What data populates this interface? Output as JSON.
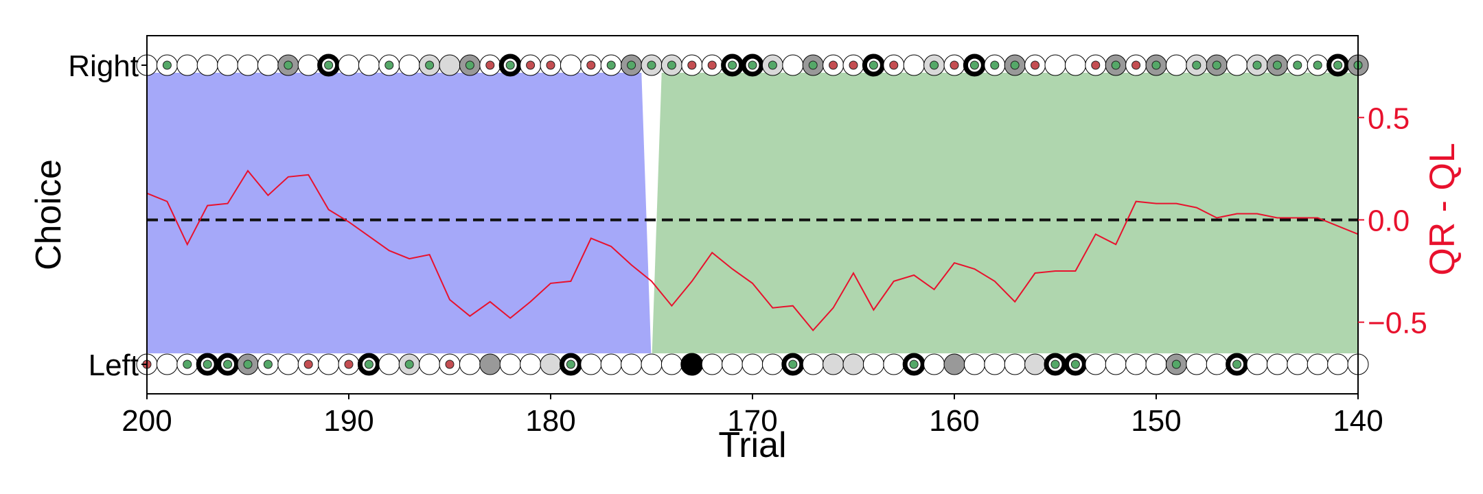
{
  "chart_data": {
    "type": "line",
    "xlabel": "Trial",
    "ylabel_left": "Choice",
    "ylabel_right": "QR - QL",
    "xlim": [
      200,
      140
    ],
    "x_ticks": [
      200,
      190,
      180,
      170,
      160,
      150,
      140
    ],
    "choice_ticks": [
      "Left",
      "Right"
    ],
    "right_ylim": [
      -0.85,
      0.9
    ],
    "right_ticks": [
      0.5,
      0.0,
      -0.5
    ],
    "colors": {
      "block_a": "#a5a8f9",
      "block_b": "#a6d2a5",
      "line": "#e8112d",
      "threshold": "#111111",
      "reward_dot": "#55a868",
      "no_reward_dot": "#c44e52",
      "right_axis": "#e8112d"
    },
    "blocks": [
      {
        "color": "block_a",
        "x_start": 200,
        "x_end": 175.5
      },
      {
        "color": "block_b",
        "x_start": 174.5,
        "x_end": 140
      }
    ],
    "threshold": 0.0,
    "series": [
      {
        "x": [
          200,
          199,
          198,
          197,
          196,
          195,
          194,
          193,
          192,
          191,
          190,
          189,
          188,
          187,
          186,
          185,
          184,
          183,
          182,
          181,
          180,
          179,
          178,
          177,
          176,
          175,
          174,
          173,
          172,
          171,
          170,
          169,
          168,
          167,
          166,
          165,
          164,
          163,
          162,
          161,
          160,
          159,
          158,
          157,
          156,
          155,
          154,
          153,
          152,
          151,
          150,
          149,
          148,
          147,
          146,
          145,
          144,
          143,
          142,
          141,
          140
        ],
        "values": [
          0.13,
          0.09,
          -0.12,
          0.07,
          0.08,
          0.24,
          0.12,
          0.21,
          0.22,
          0.05,
          -0.01,
          -0.08,
          -0.15,
          -0.19,
          -0.17,
          -0.39,
          -0.47,
          -0.4,
          -0.48,
          -0.4,
          -0.31,
          -0.3,
          -0.09,
          -0.13,
          -0.22,
          -0.3,
          -0.42,
          -0.3,
          -0.16,
          -0.24,
          -0.31,
          -0.43,
          -0.42,
          -0.54,
          -0.43,
          -0.26,
          -0.44,
          -0.3,
          -0.27,
          -0.34,
          -0.21,
          -0.24,
          -0.3,
          -0.4,
          -0.26,
          -0.25,
          -0.25,
          -0.07,
          -0.12,
          0.09,
          0.08,
          0.08,
          0.06,
          0.01,
          0.03,
          0.03,
          0.01,
          0.01,
          0.01,
          -0.03,
          -0.07
        ]
      }
    ],
    "right_choices": [
      {
        "x": 200,
        "fill": "#ffffff",
        "ring": "thin",
        "dot": "none"
      },
      {
        "x": 199,
        "fill": "#ffffff",
        "ring": "thin",
        "dot": "green"
      },
      {
        "x": 198,
        "fill": "#ffffff",
        "ring": "thin",
        "dot": "none"
      },
      {
        "x": 197,
        "fill": "#ffffff",
        "ring": "thin",
        "dot": "none"
      },
      {
        "x": 196,
        "fill": "#ffffff",
        "ring": "thin",
        "dot": "none"
      },
      {
        "x": 195,
        "fill": "#ffffff",
        "ring": "thin",
        "dot": "none"
      },
      {
        "x": 194,
        "fill": "#ffffff",
        "ring": "thin",
        "dot": "none"
      },
      {
        "x": 193,
        "fill": "#999999",
        "ring": "thin",
        "dot": "green"
      },
      {
        "x": 192,
        "fill": "#ffffff",
        "ring": "thin",
        "dot": "none"
      },
      {
        "x": 191,
        "fill": "#ffffff",
        "ring": "thick",
        "dot": "green"
      },
      {
        "x": 190,
        "fill": "#ffffff",
        "ring": "thin",
        "dot": "none"
      },
      {
        "x": 189,
        "fill": "#ffffff",
        "ring": "thin",
        "dot": "none"
      },
      {
        "x": 188,
        "fill": "#ffffff",
        "ring": "thin",
        "dot": "green"
      },
      {
        "x": 187,
        "fill": "#ffffff",
        "ring": "thin",
        "dot": "none"
      },
      {
        "x": 186,
        "fill": "#d9d9d9",
        "ring": "thin",
        "dot": "green"
      },
      {
        "x": 185,
        "fill": "#d9d9d9",
        "ring": "thin",
        "dot": "none"
      },
      {
        "x": 184,
        "fill": "#999999",
        "ring": "thin",
        "dot": "green"
      },
      {
        "x": 183,
        "fill": "#ffffff",
        "ring": "thin",
        "dot": "red"
      },
      {
        "x": 182,
        "fill": "#ffffff",
        "ring": "thick",
        "dot": "green"
      },
      {
        "x": 181,
        "fill": "#ffffff",
        "ring": "thin",
        "dot": "red"
      },
      {
        "x": 180,
        "fill": "#ffffff",
        "ring": "thin",
        "dot": "red"
      },
      {
        "x": 179,
        "fill": "#ffffff",
        "ring": "thin",
        "dot": "none"
      },
      {
        "x": 178,
        "fill": "#ffffff",
        "ring": "thin",
        "dot": "red"
      },
      {
        "x": 177,
        "fill": "#ffffff",
        "ring": "thin",
        "dot": "green"
      },
      {
        "x": 176,
        "fill": "#999999",
        "ring": "thin",
        "dot": "green"
      },
      {
        "x": 175,
        "fill": "#d9d9d9",
        "ring": "thin",
        "dot": "green"
      },
      {
        "x": 174,
        "fill": "#d9d9d9",
        "ring": "thin",
        "dot": "green"
      },
      {
        "x": 173,
        "fill": "#ffffff",
        "ring": "thin",
        "dot": "red"
      },
      {
        "x": 172,
        "fill": "#ffffff",
        "ring": "thin",
        "dot": "red"
      },
      {
        "x": 171,
        "fill": "#ffffff",
        "ring": "thick",
        "dot": "green"
      },
      {
        "x": 170,
        "fill": "#ffffff",
        "ring": "thick",
        "dot": "green"
      },
      {
        "x": 169,
        "fill": "#d9d9d9",
        "ring": "thin",
        "dot": "green"
      },
      {
        "x": 168,
        "fill": "#ffffff",
        "ring": "thin",
        "dot": "none"
      },
      {
        "x": 167,
        "fill": "#999999",
        "ring": "thin",
        "dot": "green"
      },
      {
        "x": 166,
        "fill": "#ffffff",
        "ring": "thin",
        "dot": "red"
      },
      {
        "x": 165,
        "fill": "#ffffff",
        "ring": "thin",
        "dot": "red"
      },
      {
        "x": 164,
        "fill": "#ffffff",
        "ring": "thick",
        "dot": "green"
      },
      {
        "x": 163,
        "fill": "#ffffff",
        "ring": "thin",
        "dot": "red"
      },
      {
        "x": 162,
        "fill": "#ffffff",
        "ring": "thin",
        "dot": "none"
      },
      {
        "x": 161,
        "fill": "#d9d9d9",
        "ring": "thin",
        "dot": "green"
      },
      {
        "x": 160,
        "fill": "#ffffff",
        "ring": "thin",
        "dot": "red"
      },
      {
        "x": 159,
        "fill": "#ffffff",
        "ring": "thick",
        "dot": "green"
      },
      {
        "x": 158,
        "fill": "#ffffff",
        "ring": "thin",
        "dot": "green"
      },
      {
        "x": 157,
        "fill": "#999999",
        "ring": "thin",
        "dot": "green"
      },
      {
        "x": 156,
        "fill": "#ffffff",
        "ring": "thin",
        "dot": "red"
      },
      {
        "x": 155,
        "fill": "#ffffff",
        "ring": "thin",
        "dot": "none"
      },
      {
        "x": 154,
        "fill": "#ffffff",
        "ring": "thin",
        "dot": "none"
      },
      {
        "x": 153,
        "fill": "#ffffff",
        "ring": "thin",
        "dot": "red"
      },
      {
        "x": 152,
        "fill": "#999999",
        "ring": "thin",
        "dot": "green"
      },
      {
        "x": 151,
        "fill": "#ffffff",
        "ring": "thin",
        "dot": "red"
      },
      {
        "x": 150,
        "fill": "#999999",
        "ring": "thin",
        "dot": "green"
      },
      {
        "x": 149,
        "fill": "#ffffff",
        "ring": "thin",
        "dot": "none"
      },
      {
        "x": 148,
        "fill": "#d9d9d9",
        "ring": "thin",
        "dot": "green"
      },
      {
        "x": 147,
        "fill": "#999999",
        "ring": "thin",
        "dot": "green"
      },
      {
        "x": 146,
        "fill": "#ffffff",
        "ring": "thin",
        "dot": "none"
      },
      {
        "x": 145,
        "fill": "#d9d9d9",
        "ring": "thin",
        "dot": "green"
      },
      {
        "x": 144,
        "fill": "#999999",
        "ring": "thin",
        "dot": "green"
      },
      {
        "x": 143,
        "fill": "#ffffff",
        "ring": "thin",
        "dot": "green"
      },
      {
        "x": 142,
        "fill": "#ffffff",
        "ring": "thin",
        "dot": "green"
      },
      {
        "x": 141,
        "fill": "#ffffff",
        "ring": "thick",
        "dot": "green"
      },
      {
        "x": 140,
        "fill": "#999999",
        "ring": "thin",
        "dot": "green"
      }
    ],
    "left_choices": [
      {
        "x": 200,
        "fill": "#ffffff",
        "ring": "thin",
        "dot": "red"
      },
      {
        "x": 199,
        "fill": "#ffffff",
        "ring": "thin",
        "dot": "none"
      },
      {
        "x": 198,
        "fill": "#ffffff",
        "ring": "thin",
        "dot": "green"
      },
      {
        "x": 197,
        "fill": "#ffffff",
        "ring": "thick",
        "dot": "green"
      },
      {
        "x": 196,
        "fill": "#ffffff",
        "ring": "thick",
        "dot": "green"
      },
      {
        "x": 195,
        "fill": "#999999",
        "ring": "thin",
        "dot": "green"
      },
      {
        "x": 194,
        "fill": "#ffffff",
        "ring": "thin",
        "dot": "green"
      },
      {
        "x": 193,
        "fill": "#ffffff",
        "ring": "thin",
        "dot": "none"
      },
      {
        "x": 192,
        "fill": "#ffffff",
        "ring": "thin",
        "dot": "red"
      },
      {
        "x": 191,
        "fill": "#ffffff",
        "ring": "thin",
        "dot": "none"
      },
      {
        "x": 190,
        "fill": "#ffffff",
        "ring": "thin",
        "dot": "red"
      },
      {
        "x": 189,
        "fill": "#ffffff",
        "ring": "thick",
        "dot": "green"
      },
      {
        "x": 188,
        "fill": "#ffffff",
        "ring": "thin",
        "dot": "none"
      },
      {
        "x": 187,
        "fill": "#d9d9d9",
        "ring": "thin",
        "dot": "green"
      },
      {
        "x": 186,
        "fill": "#ffffff",
        "ring": "thin",
        "dot": "none"
      },
      {
        "x": 185,
        "fill": "#ffffff",
        "ring": "thin",
        "dot": "red"
      },
      {
        "x": 184,
        "fill": "#ffffff",
        "ring": "thin",
        "dot": "none"
      },
      {
        "x": 183,
        "fill": "#999999",
        "ring": "thin",
        "dot": "none"
      },
      {
        "x": 182,
        "fill": "#ffffff",
        "ring": "thin",
        "dot": "none"
      },
      {
        "x": 181,
        "fill": "#ffffff",
        "ring": "thin",
        "dot": "none"
      },
      {
        "x": 180,
        "fill": "#d9d9d9",
        "ring": "thin",
        "dot": "none"
      },
      {
        "x": 179,
        "fill": "#ffffff",
        "ring": "thick",
        "dot": "green"
      },
      {
        "x": 178,
        "fill": "#ffffff",
        "ring": "thin",
        "dot": "none"
      },
      {
        "x": 177,
        "fill": "#ffffff",
        "ring": "thin",
        "dot": "none"
      },
      {
        "x": 176,
        "fill": "#ffffff",
        "ring": "thin",
        "dot": "none"
      },
      {
        "x": 175,
        "fill": "#ffffff",
        "ring": "thin",
        "dot": "none"
      },
      {
        "x": 174,
        "fill": "#ffffff",
        "ring": "thin",
        "dot": "none"
      },
      {
        "x": 173,
        "fill": "#000000",
        "ring": "thick",
        "dot": "none"
      },
      {
        "x": 172,
        "fill": "#ffffff",
        "ring": "thin",
        "dot": "none"
      },
      {
        "x": 171,
        "fill": "#ffffff",
        "ring": "thin",
        "dot": "none"
      },
      {
        "x": 170,
        "fill": "#ffffff",
        "ring": "thin",
        "dot": "none"
      },
      {
        "x": 169,
        "fill": "#ffffff",
        "ring": "thin",
        "dot": "none"
      },
      {
        "x": 168,
        "fill": "#ffffff",
        "ring": "thick",
        "dot": "green"
      },
      {
        "x": 167,
        "fill": "#ffffff",
        "ring": "thin",
        "dot": "none"
      },
      {
        "x": 166,
        "fill": "#d9d9d9",
        "ring": "thin",
        "dot": "none"
      },
      {
        "x": 165,
        "fill": "#d9d9d9",
        "ring": "thin",
        "dot": "none"
      },
      {
        "x": 164,
        "fill": "#ffffff",
        "ring": "thin",
        "dot": "none"
      },
      {
        "x": 163,
        "fill": "#ffffff",
        "ring": "thin",
        "dot": "none"
      },
      {
        "x": 162,
        "fill": "#ffffff",
        "ring": "thick",
        "dot": "green"
      },
      {
        "x": 161,
        "fill": "#ffffff",
        "ring": "thin",
        "dot": "none"
      },
      {
        "x": 160,
        "fill": "#999999",
        "ring": "thin",
        "dot": "none"
      },
      {
        "x": 159,
        "fill": "#ffffff",
        "ring": "thin",
        "dot": "none"
      },
      {
        "x": 158,
        "fill": "#ffffff",
        "ring": "thin",
        "dot": "none"
      },
      {
        "x": 157,
        "fill": "#ffffff",
        "ring": "thin",
        "dot": "none"
      },
      {
        "x": 156,
        "fill": "#d9d9d9",
        "ring": "thin",
        "dot": "none"
      },
      {
        "x": 155,
        "fill": "#ffffff",
        "ring": "thick",
        "dot": "green"
      },
      {
        "x": 154,
        "fill": "#ffffff",
        "ring": "thick",
        "dot": "green"
      },
      {
        "x": 153,
        "fill": "#ffffff",
        "ring": "thin",
        "dot": "none"
      },
      {
        "x": 152,
        "fill": "#ffffff",
        "ring": "thin",
        "dot": "none"
      },
      {
        "x": 151,
        "fill": "#ffffff",
        "ring": "thin",
        "dot": "none"
      },
      {
        "x": 150,
        "fill": "#ffffff",
        "ring": "thin",
        "dot": "none"
      },
      {
        "x": 149,
        "fill": "#999999",
        "ring": "thin",
        "dot": "green"
      },
      {
        "x": 148,
        "fill": "#ffffff",
        "ring": "thin",
        "dot": "none"
      },
      {
        "x": 147,
        "fill": "#ffffff",
        "ring": "thin",
        "dot": "none"
      },
      {
        "x": 146,
        "fill": "#ffffff",
        "ring": "thick",
        "dot": "green"
      },
      {
        "x": 145,
        "fill": "#ffffff",
        "ring": "thin",
        "dot": "none"
      },
      {
        "x": 144,
        "fill": "#ffffff",
        "ring": "thin",
        "dot": "none"
      },
      {
        "x": 143,
        "fill": "#ffffff",
        "ring": "thin",
        "dot": "none"
      },
      {
        "x": 142,
        "fill": "#ffffff",
        "ring": "thin",
        "dot": "none"
      },
      {
        "x": 141,
        "fill": "#ffffff",
        "ring": "thin",
        "dot": "none"
      },
      {
        "x": 140,
        "fill": "#ffffff",
        "ring": "thin",
        "dot": "none"
      }
    ]
  }
}
